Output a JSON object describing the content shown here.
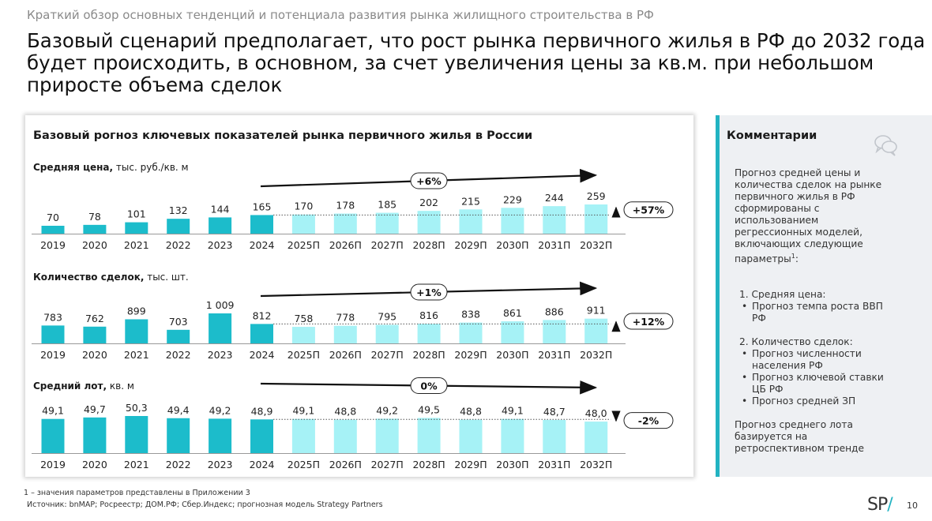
{
  "header": {
    "subtitle": "Краткий обзор основных тенденций и потенциала развития рынка жилищного строительства в РФ",
    "headline": "Базовый сценарий предполагает, что рост рынка первичного жилья в РФ до 2032 года будет происходить, в основном, за счет увеличения цены за кв.м. при небольшом приросте объема сделок"
  },
  "panel": {
    "title": "Базовый рогноз ключевых показателей рынка первичного жилья в России"
  },
  "colors": {
    "actual": "#1cbccb",
    "forecast": "#a6f2f6",
    "accent": "#22b3c2"
  },
  "chart_data": [
    {
      "type": "bar",
      "name_bold": "Средняя цена,",
      "unit": "тыс. руб./кв. м",
      "categories": [
        "2019",
        "2020",
        "2021",
        "2022",
        "2023",
        "2024",
        "2025П",
        "2026П",
        "2027П",
        "2028П",
        "2029П",
        "2030П",
        "2031П",
        "2032П"
      ],
      "values": [
        70,
        78,
        101,
        132,
        144,
        165,
        170,
        178,
        185,
        202,
        215,
        229,
        244,
        259
      ],
      "labels": [
        "70",
        "78",
        "101",
        "132",
        "144",
        "165",
        "170",
        "178",
        "185",
        "202",
        "215",
        "229",
        "244",
        "259"
      ],
      "actual_count": 6,
      "trend_label": "+6%",
      "change_label": "+57%",
      "change_direction": "up"
    },
    {
      "type": "bar",
      "name_bold": "Количество сделок,",
      "unit": "тыс. шт.",
      "categories": [
        "2019",
        "2020",
        "2021",
        "2022",
        "2023",
        "2024",
        "2025П",
        "2026П",
        "2027П",
        "2028П",
        "2029П",
        "2030П",
        "2031П",
        "2032П"
      ],
      "values": [
        783,
        762,
        899,
        703,
        1009,
        812,
        758,
        778,
        795,
        816,
        838,
        861,
        886,
        911
      ],
      "labels": [
        "783",
        "762",
        "899",
        "703",
        "1 009",
        "812",
        "758",
        "778",
        "795",
        "816",
        "838",
        "861",
        "886",
        "911"
      ],
      "actual_count": 6,
      "trend_label": "+1%",
      "change_label": "+12%",
      "change_direction": "up"
    },
    {
      "type": "bar",
      "name_bold": "Средний лот,",
      "unit": "кв. м",
      "categories": [
        "2019",
        "2020",
        "2021",
        "2022",
        "2023",
        "2024",
        "2025П",
        "2026П",
        "2027П",
        "2028П",
        "2029П",
        "2030П",
        "2031П",
        "2032П"
      ],
      "values": [
        49.1,
        49.7,
        50.3,
        49.4,
        49.2,
        48.9,
        49.1,
        48.8,
        49.2,
        49.5,
        48.8,
        49.1,
        48.7,
        48.0
      ],
      "labels": [
        "49,1",
        "49,7",
        "50,3",
        "49,4",
        "49,2",
        "48,9",
        "49,1",
        "48,8",
        "49,2",
        "49,5",
        "48,8",
        "49,1",
        "48,7",
        "48,0"
      ],
      "actual_count": 6,
      "trend_label": "0%",
      "change_label": "-2%",
      "change_direction": "down"
    }
  ],
  "side": {
    "title": "Комментарии",
    "icon": "comments-icon",
    "intro": "Прогноз средней цены и количества сделок на рынке первичного жилья в РФ сформированы с использованием регрессионных моделей, включающих следующие параметры",
    "intro_sup": "1",
    "intro_end": ":",
    "section1": "1. Средняя цена:",
    "section1_items": [
      "Прогноз темпа роста ВВП РФ"
    ],
    "section2": "2. Количество сделок:",
    "section2_items": [
      "Прогноз численности населения РФ",
      "Прогноз ключевой ставки ЦБ РФ",
      "Прогноз средней ЗП"
    ],
    "closing": "Прогноз среднего лота базируется на ретроспективном тренде"
  },
  "footer": {
    "footnote": "1 – значения параметров представлены в Приложении 3",
    "source": "Источник: bnMAP; Росреестр; ДОМ.РФ; Сбер.Индекс; прогнозная модель Strategy Partners",
    "logo_left": "SP",
    "logo_slash": "/",
    "page": "10"
  }
}
